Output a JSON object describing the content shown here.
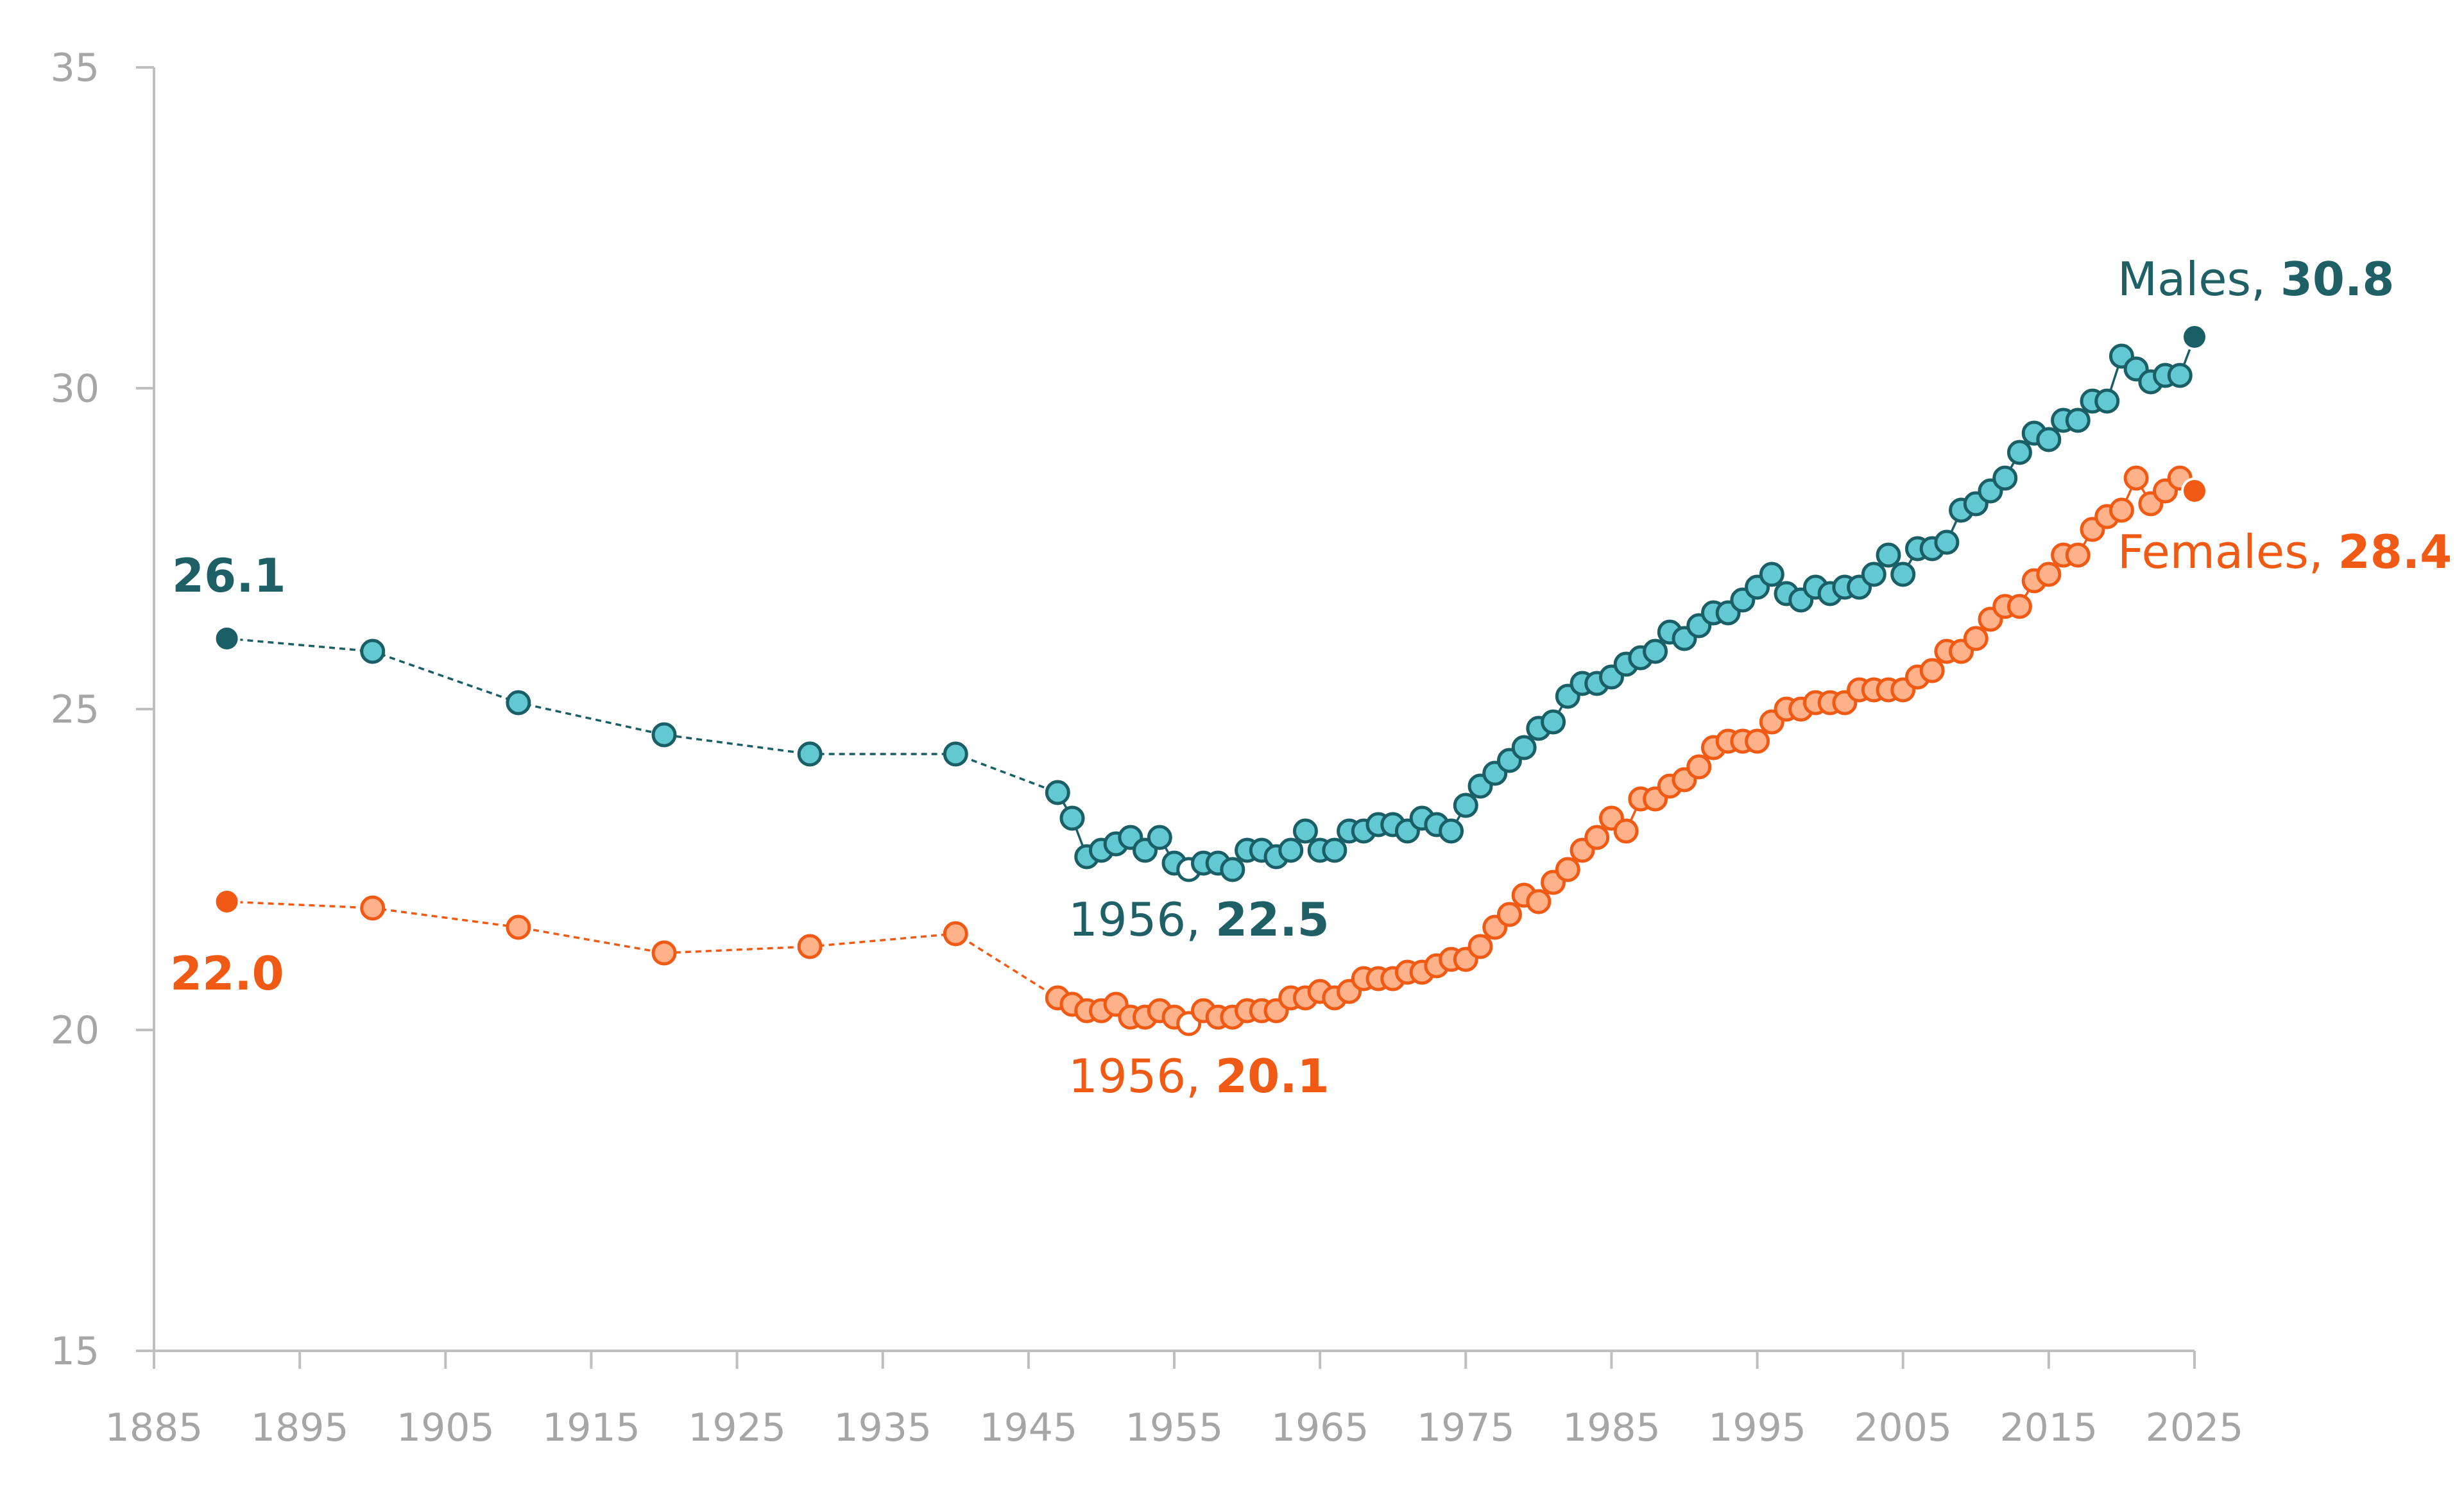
{
  "chart_data": {
    "type": "line",
    "x_ticks": [
      1885,
      1895,
      1905,
      1915,
      1925,
      1935,
      1945,
      1955,
      1965,
      1975,
      1985,
      1995,
      2005,
      2015,
      2025
    ],
    "y_ticks": [
      15,
      20,
      25,
      30,
      35
    ],
    "xlim": [
      1885,
      2025
    ],
    "ylim": [
      15,
      35
    ],
    "colors": {
      "axis": "#bfbfbf",
      "tick_text": "#a6a6a6",
      "males_line": "#1a5e66",
      "males_fill": "#62c9d3",
      "males_text": "#1f5f66",
      "females_line": "#f05a14",
      "females_fill": "#ffb28a",
      "females_text": "#f05a14"
    },
    "series": [
      {
        "name": "Males",
        "x": [
          1890,
          1900,
          1910,
          1920,
          1930,
          1940,
          1947,
          1948,
          1949,
          1950,
          1951,
          1952,
          1953,
          1954,
          1955,
          1956,
          1957,
          1958,
          1959,
          1960,
          1961,
          1962,
          1963,
          1964,
          1965,
          1966,
          1967,
          1968,
          1969,
          1970,
          1971,
          1972,
          1973,
          1974,
          1975,
          1976,
          1977,
          1978,
          1979,
          1980,
          1981,
          1982,
          1983,
          1984,
          1985,
          1986,
          1987,
          1988,
          1989,
          1990,
          1991,
          1992,
          1993,
          1994,
          1995,
          1996,
          1997,
          1998,
          1999,
          2000,
          2001,
          2002,
          2003,
          2004,
          2005,
          2006,
          2007,
          2008,
          2009,
          2010,
          2011,
          2012,
          2013,
          2014,
          2015,
          2016,
          2017,
          2018,
          2019,
          2020,
          2021,
          2022,
          2023,
          2024,
          2025
        ],
        "values": [
          26.1,
          25.9,
          25.1,
          24.6,
          24.3,
          24.3,
          23.7,
          23.3,
          22.7,
          22.8,
          22.9,
          23.0,
          22.8,
          23.0,
          22.6,
          22.5,
          22.6,
          22.6,
          22.5,
          22.8,
          22.8,
          22.7,
          22.8,
          23.1,
          22.8,
          22.8,
          23.1,
          23.1,
          23.2,
          23.2,
          23.1,
          23.3,
          23.2,
          23.1,
          23.5,
          23.8,
          24.0,
          24.2,
          24.4,
          24.7,
          24.8,
          25.2,
          25.4,
          25.4,
          25.5,
          25.7,
          25.8,
          25.9,
          26.2,
          26.1,
          26.3,
          26.5,
          26.5,
          26.7,
          26.9,
          27.1,
          26.8,
          26.7,
          26.9,
          26.8,
          26.9,
          26.9,
          27.1,
          27.4,
          27.1,
          27.5,
          27.5,
          27.6,
          28.1,
          28.2,
          28.4,
          28.6,
          29.0,
          29.3,
          29.2,
          29.5,
          29.5,
          29.8,
          29.8,
          30.5,
          30.3,
          30.1,
          30.2,
          30.2,
          30.8
        ]
      },
      {
        "name": "Females",
        "x": [
          1890,
          1900,
          1910,
          1920,
          1930,
          1940,
          1947,
          1948,
          1949,
          1950,
          1951,
          1952,
          1953,
          1954,
          1955,
          1956,
          1957,
          1958,
          1959,
          1960,
          1961,
          1962,
          1963,
          1964,
          1965,
          1966,
          1967,
          1968,
          1969,
          1970,
          1971,
          1972,
          1973,
          1974,
          1975,
          1976,
          1977,
          1978,
          1979,
          1980,
          1981,
          1982,
          1983,
          1984,
          1985,
          1986,
          1987,
          1988,
          1989,
          1990,
          1991,
          1992,
          1993,
          1994,
          1995,
          1996,
          1997,
          1998,
          1999,
          2000,
          2001,
          2002,
          2003,
          2004,
          2005,
          2006,
          2007,
          2008,
          2009,
          2010,
          2011,
          2012,
          2013,
          2014,
          2015,
          2016,
          2017,
          2018,
          2019,
          2020,
          2021,
          2022,
          2023,
          2024,
          2025
        ],
        "values": [
          22.0,
          21.9,
          21.6,
          21.2,
          21.3,
          21.5,
          20.5,
          20.4,
          20.3,
          20.3,
          20.4,
          20.2,
          20.2,
          20.3,
          20.2,
          20.1,
          20.3,
          20.2,
          20.2,
          20.3,
          20.3,
          20.3,
          20.5,
          20.5,
          20.6,
          20.5,
          20.6,
          20.8,
          20.8,
          20.8,
          20.9,
          20.9,
          21.0,
          21.1,
          21.1,
          21.3,
          21.6,
          21.8,
          22.1,
          22.0,
          22.3,
          22.5,
          22.8,
          23.0,
          23.3,
          23.1,
          23.6,
          23.6,
          23.8,
          23.9,
          24.1,
          24.4,
          24.5,
          24.5,
          24.5,
          24.8,
          25.0,
          25.0,
          25.1,
          25.1,
          25.1,
          25.3,
          25.3,
          25.3,
          25.3,
          25.5,
          25.6,
          25.9,
          25.9,
          26.1,
          26.4,
          26.6,
          26.6,
          27.0,
          27.1,
          27.4,
          27.4,
          27.8,
          28.0,
          28.1,
          28.6,
          28.2,
          28.4,
          28.6,
          28.4
        ]
      }
    ],
    "annotations": {
      "males_first": {
        "value": "26.1"
      },
      "males_min": {
        "year": "1956, ",
        "value": "22.5"
      },
      "males_last": {
        "name": "Males, ",
        "value": "30.8"
      },
      "females_first": {
        "value": "22.0"
      },
      "females_min": {
        "year": "1956, ",
        "value": "20.1"
      },
      "females_last": {
        "name": "Females, ",
        "value": "28.4"
      }
    },
    "grid": false,
    "legend": "none"
  }
}
